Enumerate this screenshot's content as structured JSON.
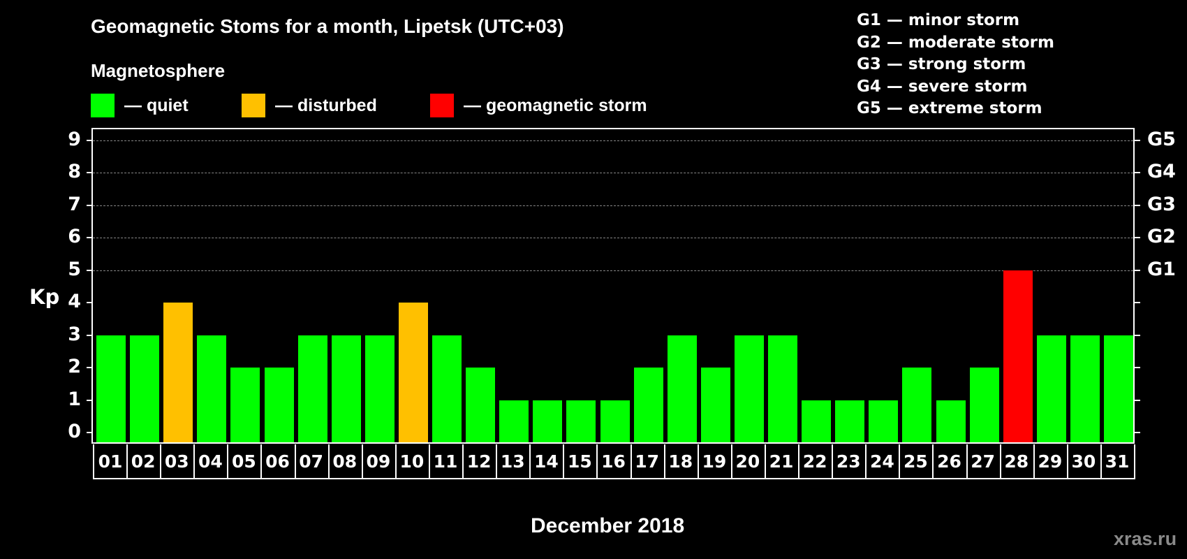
{
  "header": {
    "title": "Geomagnetic Stoms for a month, Lipetsk (UTC+03)",
    "subtitle": "Magnetosphere"
  },
  "legend": [
    {
      "label": "— quiet",
      "color": "#00ff00"
    },
    {
      "label": "— disturbed",
      "color": "#ffc000"
    },
    {
      "label": "— geomagnetic storm",
      "color": "#ff0000"
    }
  ],
  "storm_scale": [
    "G1 — minor storm",
    "G2 — moderate storm",
    "G3 — strong storm",
    "G4 — severe storm",
    "G5 — extreme storm"
  ],
  "axes": {
    "ylabel": "Kp",
    "xlabel": "December 2018",
    "yticks": [
      "0",
      "1",
      "2",
      "3",
      "4",
      "5",
      "6",
      "7",
      "8",
      "9"
    ],
    "right_labels": [
      {
        "y": 5,
        "label": "G1"
      },
      {
        "y": 6,
        "label": "G2"
      },
      {
        "y": 7,
        "label": "G3"
      },
      {
        "y": 8,
        "label": "G4"
      },
      {
        "y": 9,
        "label": "G5"
      }
    ]
  },
  "watermark": "xras.ru",
  "colors": {
    "quiet": "#00ff00",
    "disturbed": "#ffc000",
    "storm": "#ff0000",
    "background": "#000000",
    "grid": "#888888"
  },
  "chart_data": {
    "type": "bar",
    "title": "Geomagnetic Stoms for a month, Lipetsk (UTC+03)",
    "xlabel": "December 2018",
    "ylabel": "Kp",
    "ylim": [
      0,
      9
    ],
    "grid": "dashed horizontal at 5,6,7,8,9",
    "categories": [
      "01",
      "02",
      "03",
      "04",
      "05",
      "06",
      "07",
      "08",
      "09",
      "10",
      "11",
      "12",
      "13",
      "14",
      "15",
      "16",
      "17",
      "18",
      "19",
      "20",
      "21",
      "22",
      "23",
      "24",
      "25",
      "26",
      "27",
      "28",
      "29",
      "30",
      "31"
    ],
    "values": [
      3,
      3,
      4,
      3,
      2,
      2,
      3,
      3,
      3,
      4,
      3,
      2,
      1,
      1,
      1,
      1,
      2,
      3,
      2,
      3,
      3,
      1,
      1,
      1,
      2,
      1,
      2,
      5,
      3,
      3,
      3
    ],
    "status": [
      "quiet",
      "quiet",
      "disturbed",
      "quiet",
      "quiet",
      "quiet",
      "quiet",
      "quiet",
      "quiet",
      "disturbed",
      "quiet",
      "quiet",
      "quiet",
      "quiet",
      "quiet",
      "quiet",
      "quiet",
      "quiet",
      "quiet",
      "quiet",
      "quiet",
      "quiet",
      "quiet",
      "quiet",
      "quiet",
      "quiet",
      "quiet",
      "storm",
      "quiet",
      "quiet",
      "quiet"
    ],
    "legend": [
      "quiet",
      "disturbed",
      "geomagnetic storm"
    ],
    "right_axis": {
      "5": "G1",
      "6": "G2",
      "7": "G3",
      "8": "G4",
      "9": "G5"
    }
  }
}
